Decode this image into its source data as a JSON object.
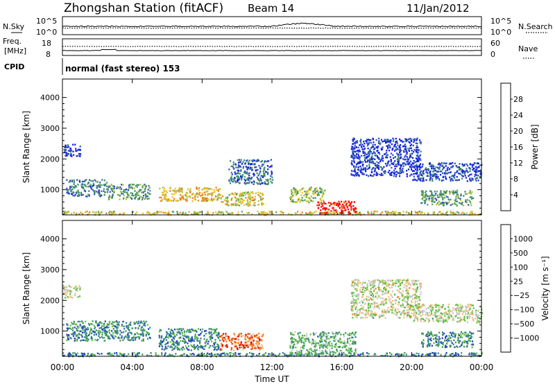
{
  "header": {
    "station": "Zhongshan Station (fitACF)",
    "beam": "Beam 14",
    "date": "11/Jan/2012"
  },
  "top_panels": {
    "nsky_label": "N.Sky",
    "nsearch_label": "N.Search",
    "nsky_ticks": [
      "10^5",
      "10^0"
    ],
    "nsearch_ticks": [
      "10^5",
      "10^0"
    ],
    "freq_label_1": "Freq.",
    "freq_label_2": "[MHz]",
    "freq_ticks": [
      "18",
      "8"
    ],
    "nave_label": "Nave",
    "nave_ticks": [
      "60",
      "0"
    ],
    "cpid_label": "CPID",
    "cpid_text": "normal (fast stereo) 153"
  },
  "chart_data": [
    {
      "type": "heatmap",
      "name": "power",
      "xlabel": "Time UT",
      "ylabel": "Slant Range [km]",
      "x_ticks": [
        "00:00",
        "04:00",
        "08:00",
        "12:00",
        "16:00",
        "20:00",
        "00:00"
      ],
      "xlim": [
        0,
        24
      ],
      "y_ticks": [
        "1000",
        "2000",
        "3000",
        "4000"
      ],
      "ylim": [
        180,
        4600
      ],
      "colorbar": {
        "label": "Power [dB]",
        "ticks": [
          "4",
          "8",
          "12",
          "16",
          "20",
          "24",
          "28"
        ],
        "range": [
          0,
          30
        ],
        "colors": [
          "#1020e0",
          "#3050c0",
          "#3a8a6a",
          "#5aa060",
          "#b0c040",
          "#f0c020",
          "#f08020",
          "#e03010",
          "#ff0000"
        ]
      },
      "echo_regions": [
        {
          "t0": 0.0,
          "t1": 24.0,
          "r0": 200,
          "r1": 320,
          "level": 0.55
        },
        {
          "t0": 0.2,
          "t1": 2.5,
          "r0": 800,
          "r1": 1350,
          "level": 0.25
        },
        {
          "t0": 2.5,
          "t1": 5.0,
          "r0": 700,
          "r1": 1200,
          "level": 0.35
        },
        {
          "t0": 5.5,
          "t1": 9.0,
          "r0": 650,
          "r1": 1100,
          "level": 0.6
        },
        {
          "t0": 9.0,
          "t1": 11.5,
          "r0": 500,
          "r1": 950,
          "level": 0.55
        },
        {
          "t0": 13.0,
          "t1": 15.0,
          "r0": 600,
          "r1": 1100,
          "level": 0.45
        },
        {
          "t0": 14.5,
          "t1": 16.8,
          "r0": 230,
          "r1": 650,
          "level": 0.9
        },
        {
          "t0": 16.5,
          "t1": 20.5,
          "r0": 1450,
          "r1": 2700,
          "level": 0.08
        },
        {
          "t0": 20.0,
          "t1": 24.0,
          "r0": 1300,
          "r1": 1900,
          "level": 0.12
        },
        {
          "t0": 20.5,
          "t1": 23.5,
          "r0": 500,
          "r1": 1000,
          "level": 0.35
        },
        {
          "t0": 0.0,
          "t1": 1.0,
          "r0": 2100,
          "r1": 2500,
          "level": 0.1
        },
        {
          "t0": 9.5,
          "t1": 12.0,
          "r0": 1200,
          "r1": 2000,
          "level": 0.2
        }
      ]
    },
    {
      "type": "heatmap",
      "name": "velocity",
      "xlabel": "Time UT",
      "ylabel": "Slant Range [km]",
      "x_ticks": [
        "00:00",
        "04:00",
        "08:00",
        "12:00",
        "16:00",
        "20:00",
        "00:00"
      ],
      "xlim": [
        0,
        24
      ],
      "y_ticks": [
        "1000",
        "2000",
        "3000",
        "4000"
      ],
      "ylim": [
        180,
        4600
      ],
      "colorbar": {
        "label": "Velocity [m s⁻¹]",
        "ticks": [
          "1000",
          "500",
          "100",
          "25",
          "−25",
          "−100",
          "−500",
          "−1000"
        ],
        "colors": [
          "#2040c0",
          "#3a7a9a",
          "#3a9a5a",
          "#60c040",
          "#c8c8c8",
          "#f0c080",
          "#f08020",
          "#f05010",
          "#e00000"
        ]
      },
      "echo_regions": [
        {
          "t0": 0.0,
          "t1": 24.0,
          "r0": 200,
          "r1": 320,
          "level": 0.2
        },
        {
          "t0": 0.2,
          "t1": 5.0,
          "r0": 700,
          "r1": 1350,
          "level": 0.22
        },
        {
          "t0": 5.5,
          "t1": 9.0,
          "r0": 400,
          "r1": 1100,
          "level": 0.2
        },
        {
          "t0": 9.0,
          "t1": 11.5,
          "r0": 400,
          "r1": 950,
          "level": 0.8
        },
        {
          "t0": 13.0,
          "t1": 16.8,
          "r0": 250,
          "r1": 1000,
          "level": 0.35
        },
        {
          "t0": 16.5,
          "t1": 20.5,
          "r0": 1450,
          "r1": 2700,
          "level": 0.5
        },
        {
          "t0": 20.0,
          "t1": 24.0,
          "r0": 1300,
          "r1": 1900,
          "level": 0.5
        },
        {
          "t0": 20.5,
          "t1": 23.5,
          "r0": 500,
          "r1": 1000,
          "level": 0.22
        },
        {
          "t0": 0.0,
          "t1": 1.0,
          "r0": 2100,
          "r1": 2500,
          "level": 0.5
        }
      ]
    }
  ]
}
